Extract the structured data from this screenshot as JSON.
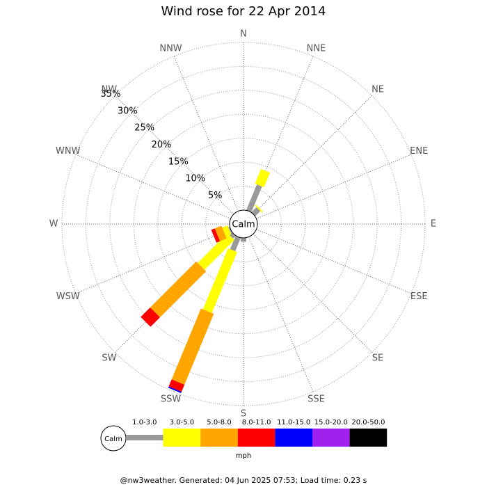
{
  "chart_data": {
    "type": "windrose",
    "title": "Wind rose for 22 Apr 2014",
    "categories": [
      "N",
      "NNE",
      "NE",
      "ENE",
      "E",
      "ESE",
      "SE",
      "SSE",
      "S",
      "SSW",
      "SW",
      "WSW",
      "W",
      "WNW",
      "NW",
      "NNW"
    ],
    "series": [
      {
        "name": "1.0-3.0",
        "color": "#999999",
        "values": [
          0,
          5.8,
          1.5,
          0,
          0,
          0,
          0,
          0,
          0.8,
          3,
          0.8,
          0.3,
          0,
          0,
          0,
          0
        ]
      },
      {
        "name": "3.0-5.0",
        "color": "#ffff00",
        "values": [
          0,
          3.3,
          0.3,
          0,
          0,
          0,
          0,
          0,
          0,
          13.8,
          8.8,
          1.2,
          0,
          0,
          0,
          0
        ]
      },
      {
        "name": "5.0-8.0",
        "color": "#ffa500",
        "values": [
          0,
          0,
          0,
          0,
          0,
          0,
          0,
          0,
          0,
          16,
          13.6,
          1.5,
          0,
          0,
          0,
          0
        ]
      },
      {
        "name": "8.0-11.0",
        "color": "#ff0000",
        "values": [
          0,
          0,
          0,
          0,
          0,
          0,
          0,
          0,
          0,
          1.6,
          2.8,
          0.8,
          0,
          0,
          0,
          0
        ]
      },
      {
        "name": "11.0-15.0",
        "color": "#0000ff",
        "values": [
          0,
          0,
          0,
          0,
          0,
          0,
          0,
          0,
          0,
          0.3,
          0,
          0,
          0,
          0,
          0,
          0
        ]
      },
      {
        "name": "15.0-20.0",
        "color": "#a020f0",
        "values": [
          0,
          0,
          0,
          0,
          0,
          0,
          0,
          0,
          0,
          0,
          0,
          0,
          0,
          0,
          0,
          0
        ]
      },
      {
        "name": "20.0-50.0",
        "color": "#000000",
        "values": [
          0,
          0,
          0,
          0,
          0,
          0,
          0,
          0,
          0,
          0,
          0,
          0,
          0,
          0,
          0,
          0
        ]
      }
    ],
    "rlim": [
      0,
      35
    ],
    "rticks": [
      {
        "value": 5,
        "label": "5%"
      },
      {
        "value": 10,
        "label": "10%"
      },
      {
        "value": 15,
        "label": "15%"
      },
      {
        "value": 20,
        "label": "20%"
      },
      {
        "value": 25,
        "label": "25%"
      },
      {
        "value": 30,
        "label": "30%"
      },
      {
        "value": 35,
        "label": "35%"
      }
    ],
    "calm_label": "Calm",
    "legend_unit": "mph",
    "footer": "@nw3weather. Generated: 04 Jun 2025 07:53; Load time: 0.23 s"
  }
}
